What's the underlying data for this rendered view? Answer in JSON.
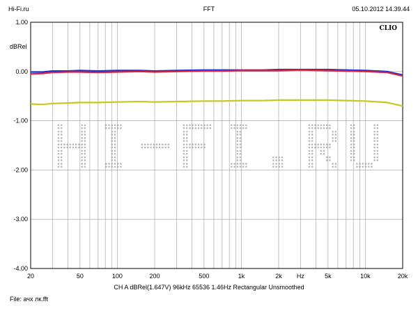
{
  "header": {
    "left": "Hi-Fi.ru",
    "center": "FFT",
    "right": "05.10.2012 14.39.44"
  },
  "footer": {
    "settings": "CH A   dBRel(1.647V)   96kHz   65536   1.46Hz   Rectangular   Unsmoothed",
    "file": "File: ачх лк.fft"
  },
  "chart_data": {
    "type": "line",
    "brand": "CLIO",
    "watermark": "Hi-Fi.ru",
    "xlabel": "Hz",
    "ylabel": "dBRel",
    "xscale": "log",
    "xlim": [
      20,
      20000
    ],
    "ylim": [
      -4,
      1
    ],
    "grid": true,
    "x_ticks": [
      {
        "value": 20,
        "label": "20"
      },
      {
        "value": 50,
        "label": "50"
      },
      {
        "value": 100,
        "label": "100"
      },
      {
        "value": 200,
        "label": "200"
      },
      {
        "value": 500,
        "label": "500"
      },
      {
        "value": 1000,
        "label": "1k"
      },
      {
        "value": 2000,
        "label": "2k"
      },
      {
        "value": 5000,
        "label": "5k"
      },
      {
        "value": 10000,
        "label": "10k"
      },
      {
        "value": 20000,
        "label": "20k"
      }
    ],
    "y_ticks": [
      {
        "value": 1,
        "label": "1.00"
      },
      {
        "value": 0,
        "label": "0.00"
      },
      {
        "value": -1,
        "label": "-1.00"
      },
      {
        "value": -2,
        "label": "-2.00"
      },
      {
        "value": -3,
        "label": "-3.00"
      },
      {
        "value": -4,
        "label": "-4.00"
      }
    ],
    "x": [
      20,
      25,
      30,
      40,
      50,
      70,
      100,
      150,
      200,
      300,
      500,
      700,
      1000,
      1500,
      2000,
      3000,
      5000,
      7000,
      10000,
      15000,
      20000
    ],
    "series": [
      {
        "color": "#1a2fd6",
        "values": [
          -0.01,
          -0.01,
          0.01,
          0.01,
          0.02,
          0.01,
          0.02,
          0.02,
          0.01,
          0.02,
          0.03,
          0.03,
          0.03,
          0.03,
          0.04,
          0.04,
          0.04,
          0.03,
          0.02,
          0.0,
          -0.07
        ]
      },
      {
        "color": "#e0203a",
        "values": [
          -0.05,
          -0.04,
          -0.02,
          -0.01,
          -0.01,
          -0.02,
          -0.01,
          0.0,
          -0.01,
          0.0,
          0.01,
          0.01,
          0.02,
          0.02,
          0.02,
          0.03,
          0.02,
          0.01,
          0.0,
          -0.02,
          -0.09
        ]
      },
      {
        "color": "#c8c81e",
        "values": [
          -0.66,
          -0.67,
          -0.65,
          -0.64,
          -0.63,
          -0.63,
          -0.62,
          -0.61,
          -0.62,
          -0.61,
          -0.6,
          -0.6,
          -0.59,
          -0.59,
          -0.58,
          -0.58,
          -0.58,
          -0.59,
          -0.6,
          -0.63,
          -0.7
        ]
      }
    ]
  }
}
